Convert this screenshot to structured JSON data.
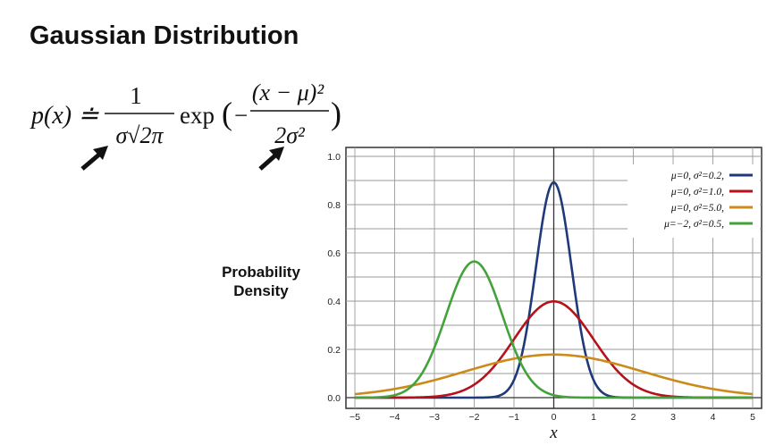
{
  "page": {
    "title": "Gaussian Distribution",
    "side_label_line1": "Probability",
    "side_label_line2": "Density"
  },
  "formula": {
    "lhs": "p(x) ≐",
    "numerator": "1",
    "denominator": "σ√2π",
    "exp": "exp",
    "inner_numerator": "(x − μ)²",
    "inner_denominator": "2σ²"
  },
  "chart_data": {
    "type": "line",
    "title": "",
    "xlabel": "x",
    "ylabel": "",
    "xlim": [
      -5,
      5
    ],
    "ylim": [
      0,
      1.0
    ],
    "xticks": [
      -5,
      -4,
      -3,
      -2,
      -1,
      0,
      1,
      2,
      3,
      4,
      5
    ],
    "yticks": [
      0.0,
      0.2,
      0.4,
      0.6,
      0.8,
      1.0
    ],
    "grid": true,
    "legend_position": "top-right",
    "series": [
      {
        "name": "μ=0, σ²=0.2,",
        "mu": 0,
        "variance": 0.2,
        "color": "#1f3a78"
      },
      {
        "name": "μ=0, σ²=1.0,",
        "mu": 0,
        "variance": 1.0,
        "color": "#b5121b"
      },
      {
        "name": "μ=0, σ²=5.0,",
        "mu": 0,
        "variance": 5.0,
        "color": "#cc8a1a"
      },
      {
        "name": "μ=−2, σ²=0.5,",
        "mu": -2,
        "variance": 0.5,
        "color": "#43a33a"
      }
    ]
  }
}
